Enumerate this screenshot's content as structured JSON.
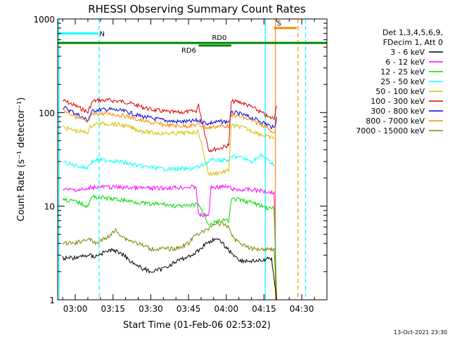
{
  "chart_data": {
    "type": "line",
    "title": "RHESSI Observing Summary Count Rates",
    "xlabel": "Start Time (01-Feb-06 02:53:02)",
    "ylabel": "Count Rate (s⁻¹ detector⁻¹)",
    "yscale": "log",
    "ylim": [
      1,
      1000
    ],
    "xlim_minutes": [
      -7,
      100
    ],
    "x_ticks": [
      "03:00",
      "03:15",
      "03:30",
      "03:45",
      "04:00",
      "04:15",
      "04:30"
    ],
    "x_tick_minutes": [
      0,
      15,
      30,
      45,
      60,
      75,
      90
    ],
    "y_ticks": [
      "1",
      "10",
      "100",
      "1000"
    ],
    "y_tick_values": [
      1,
      10,
      100,
      1000
    ],
    "legend_position": "right",
    "legend_header": [
      "Det 1,3,4,5,6,9,",
      "FDecim 1, Att 0"
    ],
    "legend": [
      {
        "label": "3 - 6 keV",
        "color": "#000000"
      },
      {
        "label": "6 - 12 keV",
        "color": "#ff00ff"
      },
      {
        "label": "12 - 25 keV",
        "color": "#00dd00"
      },
      {
        "label": "25 - 50 keV",
        "color": "#00ffff"
      },
      {
        "label": "50 - 100 keV",
        "color": "#d4c000"
      },
      {
        "label": "100 - 300 keV",
        "color": "#dd0000"
      },
      {
        "label": "300 - 800 keV",
        "color": "#0000dd"
      },
      {
        "label": "800 - 7000 keV",
        "color": "#ff8800"
      },
      {
        "label": "7000 - 15000 keV",
        "color": "#808000"
      }
    ],
    "series": [
      {
        "color": "#dd0000",
        "x": [
          -5,
          -2,
          1,
          3,
          5,
          6,
          7,
          8,
          9,
          14,
          20,
          25,
          30,
          35,
          40,
          45,
          48,
          49,
          53,
          54,
          58,
          61,
          62,
          63,
          66,
          70,
          74,
          77,
          79,
          80
        ],
        "y": [
          135,
          125,
          115,
          108,
          100,
          118,
          132,
          134,
          135,
          135,
          130,
          118,
          108,
          103,
          100,
          102,
          104,
          120,
          40,
          40,
          42,
          45,
          130,
          132,
          128,
          115,
          100,
          88,
          88,
          118
        ]
      },
      {
        "color": "#0000dd",
        "x": [
          -5,
          -2,
          1,
          3,
          5,
          6,
          7,
          8,
          9,
          14,
          20,
          25,
          30,
          35,
          40,
          45,
          48,
          49,
          53,
          54,
          58,
          61,
          62,
          63,
          66,
          70,
          74,
          77,
          79,
          80
        ],
        "y": [
          115,
          105,
          95,
          88,
          83,
          95,
          104,
          106,
          107,
          108,
          103,
          93,
          87,
          83,
          80,
          80,
          82,
          82,
          76,
          78,
          80,
          80,
          98,
          100,
          96,
          88,
          80,
          73,
          68,
          90
        ]
      },
      {
        "color": "#ff8800",
        "x": [
          -5,
          -2,
          1,
          3,
          5,
          6,
          7,
          8,
          9,
          14,
          20,
          25,
          30,
          35,
          40,
          45,
          48,
          49,
          53,
          54,
          58,
          61,
          62,
          63,
          66,
          70,
          74,
          77,
          79,
          80
        ],
        "y": [
          108,
          98,
          88,
          82,
          78,
          88,
          95,
          96,
          97,
          97,
          92,
          84,
          78,
          74,
          72,
          72,
          74,
          74,
          68,
          70,
          72,
          72,
          92,
          93,
          90,
          82,
          75,
          68,
          58,
          80
        ]
      },
      {
        "color": "#d4c000",
        "x": [
          -5,
          -2,
          1,
          3,
          5,
          6,
          7,
          8,
          9,
          14,
          20,
          25,
          30,
          35,
          40,
          45,
          48,
          49,
          53,
          54,
          58,
          61,
          62,
          63,
          66,
          70,
          74,
          77,
          79
        ],
        "y": [
          70,
          66,
          63,
          62,
          62,
          70,
          74,
          75,
          76,
          76,
          72,
          65,
          61,
          60,
          60,
          61,
          62,
          62,
          22,
          22,
          23,
          24,
          72,
          72,
          70,
          64,
          58,
          54,
          54
        ]
      },
      {
        "color": "#00ffff",
        "x": [
          -5,
          -2,
          1,
          3,
          5,
          6,
          7,
          8,
          9,
          14,
          20,
          25,
          30,
          35,
          40,
          45,
          48,
          49,
          53,
          54,
          58,
          61,
          62,
          63,
          66,
          70,
          74,
          77,
          79
        ],
        "y": [
          30,
          28,
          27,
          26,
          26,
          29,
          30,
          31,
          31,
          31,
          29,
          27,
          26,
          25,
          25,
          25,
          26,
          26,
          30,
          31,
          31,
          31,
          33,
          34,
          33,
          30,
          35,
          30,
          28
        ]
      },
      {
        "color": "#ff00ff",
        "x": [
          -5,
          0,
          5,
          6,
          15,
          30,
          45,
          48,
          49,
          53,
          54,
          60,
          61,
          63,
          70,
          75,
          79,
          80
        ],
        "y": [
          15,
          15,
          15,
          16,
          16,
          15.5,
          16,
          16,
          8,
          8,
          16,
          16,
          16,
          15,
          15,
          14.5,
          14,
          1
        ]
      },
      {
        "color": "#00dd00",
        "x": [
          -5,
          -2,
          1,
          3,
          5,
          6,
          7,
          9,
          14,
          20,
          25,
          30,
          35,
          40,
          45,
          48,
          49,
          53,
          54,
          58,
          61,
          62,
          63,
          66,
          70,
          74,
          77,
          79,
          80
        ],
        "y": [
          12,
          11.5,
          11,
          10.5,
          10,
          12,
          12.5,
          12.5,
          12,
          11.5,
          11,
          10.5,
          10.5,
          10,
          10,
          10.5,
          10.5,
          6.5,
          6.5,
          7,
          7,
          11.5,
          12,
          11.5,
          11,
          10,
          9.5,
          9.5,
          1
        ]
      },
      {
        "color": "#808000",
        "x": [
          -5,
          0,
          5,
          8,
          12,
          16,
          20,
          25,
          30,
          35,
          40,
          45,
          48,
          52,
          55,
          58,
          61,
          63,
          66,
          70,
          75,
          79,
          80
        ],
        "y": [
          4,
          4,
          4.5,
          4,
          4.5,
          5.5,
          4.5,
          4,
          3.5,
          3.5,
          3.5,
          4,
          5,
          5.5,
          6.5,
          6.5,
          6,
          4.5,
          4,
          3.5,
          3.5,
          3.5,
          1
        ]
      },
      {
        "color": "#000000",
        "x": [
          -5,
          0,
          5,
          8,
          10,
          14,
          18,
          22,
          26,
          30,
          34,
          38,
          42,
          45,
          48,
          52,
          55,
          58,
          60,
          63,
          66,
          70,
          74,
          78,
          80
        ],
        "y": [
          2.8,
          2.8,
          3,
          2.9,
          3.1,
          3.4,
          3.2,
          2.6,
          2.2,
          2,
          2.1,
          2.4,
          2.7,
          2.9,
          3.2,
          4,
          4.4,
          4.2,
          3.6,
          3,
          2.6,
          2.6,
          2.6,
          2.8,
          1
        ]
      }
    ],
    "annotations": {
      "right_top_label": "S",
      "segments": [
        {
          "label": "N",
          "color": "#00ffff",
          "x_start": -7,
          "x_end": 9,
          "level": 700
        },
        {
          "label": "",
          "color": "#ff8800",
          "x_start": 79,
          "x_end": 88,
          "level": 800
        },
        {
          "label": "RD0",
          "color": "#008800",
          "x_start": -7,
          "x_end": 100,
          "level": 555
        },
        {
          "label": "RD6",
          "color": "#008800",
          "x_start": 49,
          "x_end": 62,
          "level": 520
        }
      ],
      "vertical_lines": [
        {
          "x": -6.5,
          "color": "#00ffff",
          "style": "solid"
        },
        {
          "x": 9.5,
          "color": "#00ffff",
          "style": "dashed"
        },
        {
          "x": 75.5,
          "color": "#00ffff",
          "style": "solid"
        },
        {
          "x": 79.5,
          "color": "#ff8800",
          "style": "solid"
        },
        {
          "x": 88.5,
          "color": "#ff8800",
          "style": "dashed"
        },
        {
          "x": 91.5,
          "color": "#00ffff",
          "style": "dashed"
        }
      ]
    },
    "footer_timestamp": "13-Oct-2021 23:30"
  }
}
